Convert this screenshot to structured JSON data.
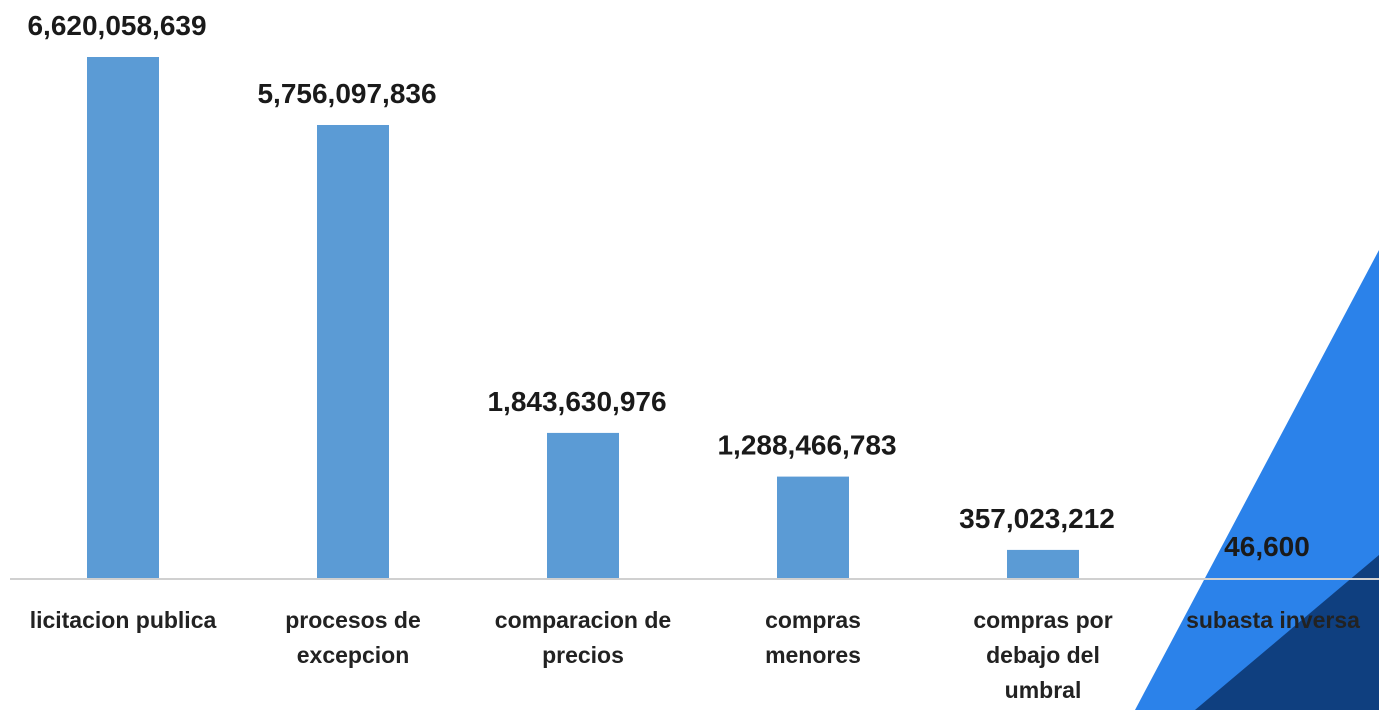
{
  "chart_data": {
    "type": "bar",
    "categories": [
      "licitacion publica",
      "procesos de\nexcepcion",
      "comparacion de\nprecios",
      "compras\nmenores",
      "compras por\ndebajo del\numbral",
      "subasta inversa"
    ],
    "values": [
      6620058639,
      5756097836,
      1843630976,
      1288466783,
      357023212,
      46600
    ],
    "value_labels": [
      "6,620,058,639",
      "5,756,097,836",
      "1,843,630,976",
      "1,288,466,783",
      "357,023,212",
      "46,600"
    ],
    "color": "#5b9bd5"
  }
}
